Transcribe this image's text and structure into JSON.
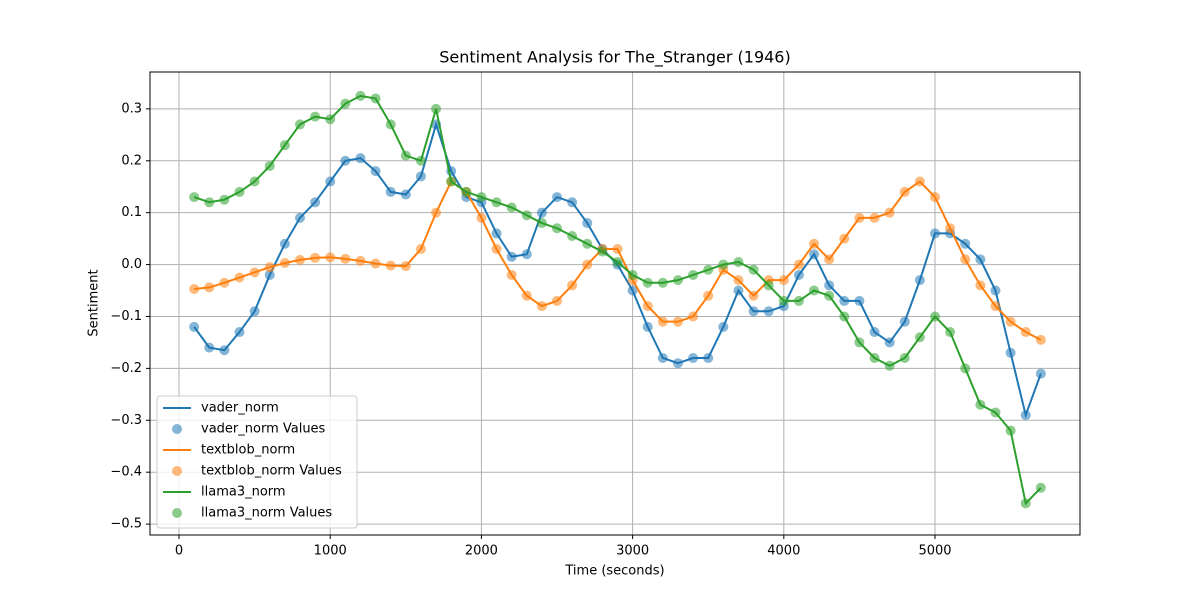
{
  "chart_data": {
    "type": "line",
    "title": "Sentiment Analysis for The_Stranger (1946)",
    "x_label": "Time (seconds)",
    "y_label": "Sentiment",
    "x": [
      100,
      200,
      300,
      400,
      500,
      600,
      700,
      800,
      900,
      1000,
      1100,
      1200,
      1300,
      1400,
      1500,
      1600,
      1700,
      1800,
      1900,
      2000,
      2100,
      2200,
      2300,
      2400,
      2500,
      2600,
      2700,
      2800,
      2900,
      3000,
      3100,
      3200,
      3300,
      3400,
      3500,
      3600,
      3700,
      3800,
      3900,
      4000,
      4100,
      4200,
      4300,
      4400,
      4500,
      4600,
      4700,
      4800,
      4900,
      5000,
      5100,
      5200,
      5300,
      5400,
      5500,
      5600,
      5700
    ],
    "series": [
      {
        "name": "vader_norm",
        "scatter_name": "vader_norm Values",
        "color": "#1f77b4",
        "values": [
          -0.12,
          -0.16,
          -0.165,
          -0.13,
          -0.09,
          -0.02,
          0.04,
          0.09,
          0.12,
          0.16,
          0.2,
          0.205,
          0.18,
          0.14,
          0.135,
          0.17,
          0.27,
          0.18,
          0.13,
          0.12,
          0.06,
          0.015,
          0.02,
          0.1,
          0.13,
          0.12,
          0.08,
          0.03,
          0.0,
          -0.05,
          -0.12,
          -0.18,
          -0.19,
          -0.18,
          -0.18,
          -0.12,
          -0.05,
          -0.09,
          -0.09,
          -0.08,
          -0.02,
          0.02,
          -0.04,
          -0.07,
          -0.07,
          -0.13,
          -0.15,
          -0.11,
          -0.03,
          0.06,
          0.06,
          0.04,
          0.01,
          -0.05,
          -0.17,
          -0.29,
          -0.21
        ]
      },
      {
        "name": "textblob_norm",
        "scatter_name": "textblob_norm Values",
        "color": "#ff7f0e",
        "values": [
          -0.047,
          -0.044,
          -0.035,
          -0.025,
          -0.015,
          -0.005,
          0.003,
          0.009,
          0.013,
          0.014,
          0.011,
          0.007,
          0.002,
          -0.002,
          -0.003,
          0.03,
          0.1,
          0.16,
          0.14,
          0.09,
          0.03,
          -0.02,
          -0.06,
          -0.08,
          -0.07,
          -0.04,
          0.0,
          0.03,
          0.03,
          -0.03,
          -0.08,
          -0.11,
          -0.11,
          -0.1,
          -0.06,
          -0.01,
          -0.03,
          -0.06,
          -0.03,
          -0.03,
          0.0,
          0.04,
          0.01,
          0.05,
          0.09,
          0.09,
          0.1,
          0.14,
          0.16,
          0.13,
          0.07,
          0.01,
          -0.04,
          -0.08,
          -0.11,
          -0.13,
          -0.145
        ]
      },
      {
        "name": "llama3_norm",
        "scatter_name": "llama3_norm Values",
        "color": "#2ca02c",
        "values": [
          0.13,
          0.12,
          0.125,
          0.14,
          0.16,
          0.19,
          0.23,
          0.27,
          0.285,
          0.28,
          0.31,
          0.325,
          0.32,
          0.27,
          0.21,
          0.2,
          0.3,
          0.16,
          0.14,
          0.13,
          0.12,
          0.11,
          0.095,
          0.08,
          0.07,
          0.055,
          0.04,
          0.025,
          0.005,
          -0.02,
          -0.035,
          -0.035,
          -0.03,
          -0.02,
          -0.01,
          0.0,
          0.005,
          -0.01,
          -0.04,
          -0.07,
          -0.07,
          -0.05,
          -0.06,
          -0.1,
          -0.15,
          -0.18,
          -0.195,
          -0.18,
          -0.14,
          -0.1,
          -0.13,
          -0.2,
          -0.27,
          -0.285,
          -0.32,
          -0.46,
          -0.43
        ]
      }
    ],
    "xlim": [
      -192,
      5959
    ],
    "ylim": [
      -0.521,
      0.371
    ],
    "xticks": [
      0,
      1000,
      2000,
      3000,
      4000,
      5000
    ],
    "yticks": [
      {
        "value": -0.5,
        "label": "−0.5"
      },
      {
        "value": -0.4,
        "label": "−0.4"
      },
      {
        "value": -0.3,
        "label": "−0.3"
      },
      {
        "value": -0.2,
        "label": "−0.2"
      },
      {
        "value": -0.1,
        "label": "−0.1"
      },
      {
        "value": 0,
        "label": "0.0"
      },
      0.1,
      0.2,
      0.3
    ],
    "grid": true,
    "legend": "lower left"
  }
}
